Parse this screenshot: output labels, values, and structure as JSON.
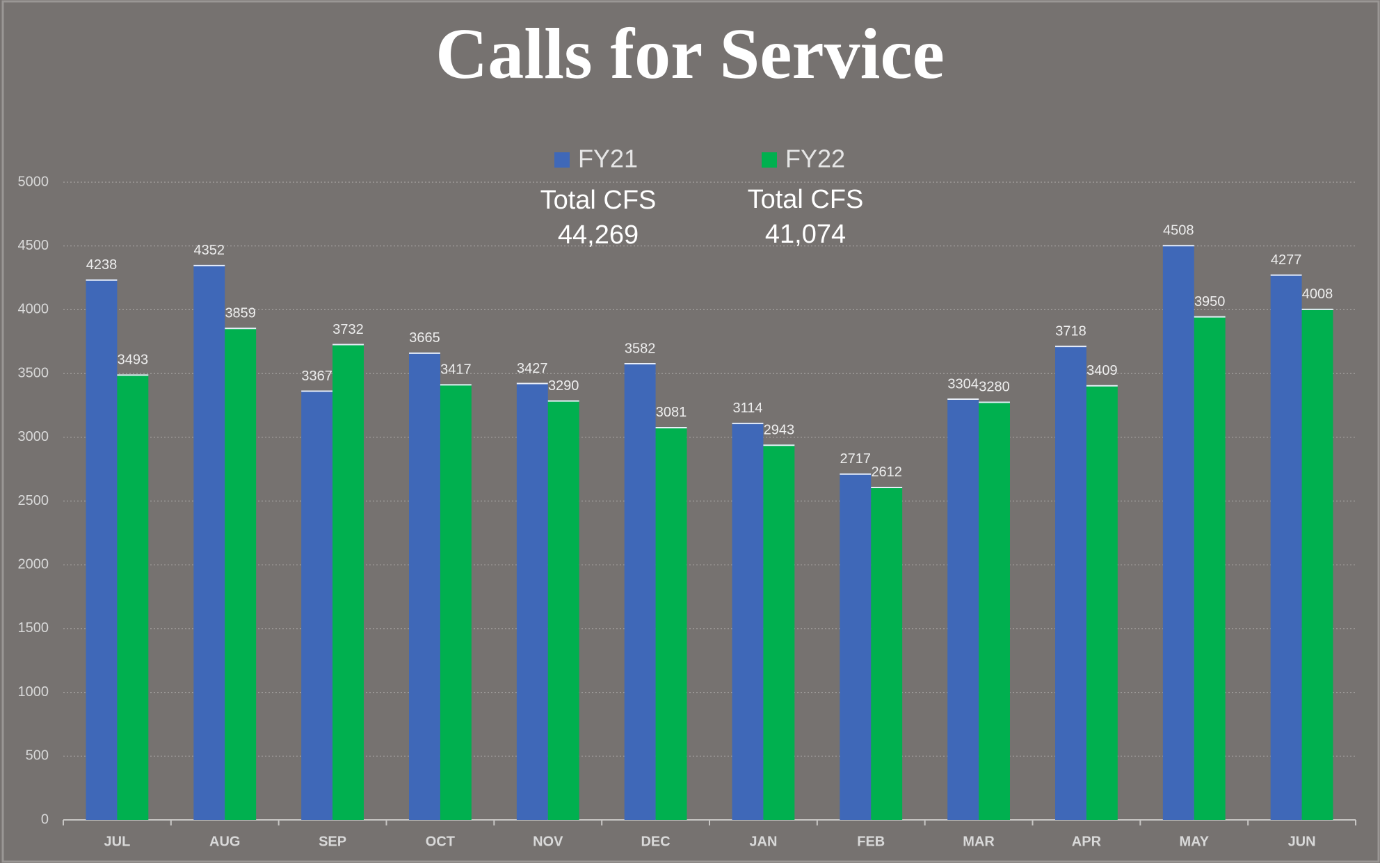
{
  "chart_data": {
    "type": "bar",
    "title": "Calls for Service",
    "categories": [
      "JUL",
      "AUG",
      "SEP",
      "OCT",
      "NOV",
      "DEC",
      "JAN",
      "FEB",
      "MAR",
      "APR",
      "MAY",
      "JUN"
    ],
    "series": [
      {
        "name": "FY21",
        "color": "#3f68b8",
        "values": [
          4238,
          4352,
          3367,
          3665,
          3427,
          3582,
          3114,
          2717,
          3304,
          3718,
          4508,
          4277
        ]
      },
      {
        "name": "FY22",
        "color": "#00b04f",
        "values": [
          3493,
          3859,
          3732,
          3417,
          3290,
          3081,
          2943,
          2612,
          3280,
          3409,
          3950,
          4008
        ]
      }
    ],
    "annotations": [
      "Total CFS",
      "44,269",
      "Total CFS",
      "41,074"
    ],
    "ylim": [
      0,
      5000
    ],
    "yticks": [
      0,
      500,
      1000,
      1500,
      2000,
      2500,
      3000,
      3500,
      4000,
      4500,
      5000
    ],
    "grid": true,
    "legend": "top"
  }
}
